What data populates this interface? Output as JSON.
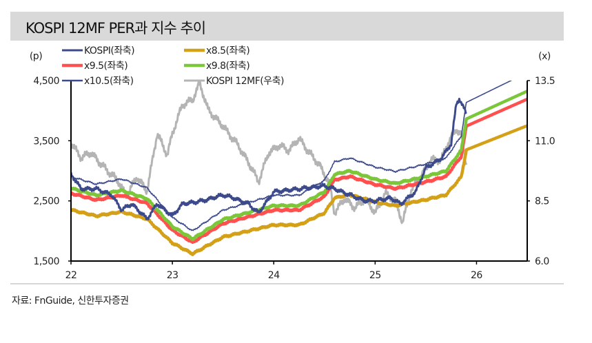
{
  "title": "KOSPI 12MF PER과 지수 추이",
  "source": "자료: FnGuide, 신한투자증권",
  "chart_data": {
    "type": "line",
    "title": "KOSPI 12MF PER과 지수 추이",
    "left_axis": {
      "label": "(p)",
      "ylim": [
        1500,
        4500
      ],
      "ticks": [
        "1,500",
        "2,500",
        "3,500",
        "4,500"
      ],
      "tick_values": [
        1500,
        2500,
        3500,
        4500
      ]
    },
    "right_axis": {
      "label": "(x)",
      "ylim": [
        6.0,
        13.5
      ],
      "ticks": [
        "6.0",
        "8.5",
        "11.0",
        "13.5"
      ],
      "tick_values": [
        6.0,
        8.5,
        11.0,
        13.5
      ]
    },
    "x_axis": {
      "xlim": [
        2022,
        2026.5
      ],
      "ticks": [
        "22",
        "23",
        "24",
        "25",
        "26"
      ],
      "tick_values": [
        2022,
        2023,
        2024,
        2025,
        2026
      ]
    },
    "grid": false,
    "legend_position": "top",
    "band_x": [
      2022.0,
      2022.25,
      2022.5,
      2022.75,
      2023.0,
      2023.2,
      2023.5,
      2023.75,
      2024.0,
      2024.25,
      2024.5,
      2024.6,
      2024.75,
      2025.0,
      2025.2,
      2025.5,
      2025.7,
      2025.85,
      2025.9,
      2026.5
    ],
    "series": [
      {
        "name": "KOSPI(좌축)",
        "axis": "left",
        "color": "#3c4a8c",
        "width": 3,
        "x": [
          2022.0,
          2022.1,
          2022.25,
          2022.4,
          2022.5,
          2022.6,
          2022.75,
          2022.85,
          2023.0,
          2023.1,
          2023.3,
          2023.5,
          2023.6,
          2023.75,
          2023.85,
          2024.0,
          2024.25,
          2024.5,
          2024.6,
          2024.75,
          2024.9,
          2025.0,
          2025.15,
          2025.25,
          2025.4,
          2025.5,
          2025.65,
          2025.75,
          2025.8,
          2025.83,
          2025.9
        ],
        "values": [
          2950,
          2700,
          2700,
          2600,
          2350,
          2450,
          2200,
          2450,
          2250,
          2450,
          2500,
          2600,
          2550,
          2450,
          2300,
          2650,
          2700,
          2750,
          2700,
          2600,
          2500,
          2500,
          2550,
          2450,
          2650,
          3050,
          3200,
          3450,
          4100,
          4200,
          3950
        ]
      },
      {
        "name": "x8.5(좌축)",
        "axis": "left",
        "color": "#d4a017",
        "width": 4.5,
        "band": true,
        "values": [
          2350,
          2250,
          2320,
          2200,
          1800,
          1620,
          1900,
          2000,
          2100,
          2100,
          2300,
          2550,
          2600,
          2480,
          2420,
          2520,
          2600,
          2900,
          3350,
          3750
        ]
      },
      {
        "name": "x9.5(좌축)",
        "axis": "left",
        "color": "#ff5050",
        "width": 4.5,
        "band": true,
        "values": [
          2626,
          2515,
          2593,
          2459,
          2012,
          1811,
          2124,
          2235,
          2347,
          2347,
          2571,
          2850,
          2906,
          2772,
          2705,
          2816,
          2906,
          3241,
          3744,
          4191
        ]
      },
      {
        "name": "x9.8(좌축)",
        "axis": "left",
        "color": "#7cc63a",
        "width": 4.5,
        "band": true,
        "values": [
          2710,
          2594,
          2675,
          2536,
          2075,
          1868,
          2191,
          2306,
          2421,
          2421,
          2652,
          2940,
          2998,
          2859,
          2790,
          2906,
          2998,
          3344,
          3863,
          4324
        ]
      },
      {
        "name": "x10.5(좌축)",
        "axis": "left",
        "color": "#3c4a8c",
        "width": 1.6,
        "band": true,
        "values": [
          2903,
          2779,
          2865,
          2717,
          2224,
          2001,
          2347,
          2471,
          2594,
          2594,
          2841,
          3150,
          3212,
          3063,
          2989,
          3113,
          3212,
          3582,
          4138,
          4632
        ]
      },
      {
        "name": "KOSPI 12MF(우축)",
        "axis": "right",
        "color": "#b4b4b4",
        "width": 3,
        "x": [
          2022.0,
          2022.1,
          2022.2,
          2022.3,
          2022.45,
          2022.55,
          2022.65,
          2022.75,
          2022.85,
          2022.95,
          2023.0,
          2023.1,
          2023.2,
          2023.27,
          2023.35,
          2023.5,
          2023.65,
          2023.75,
          2023.85,
          2023.95,
          2024.05,
          2024.15,
          2024.25,
          2024.35,
          2024.45,
          2024.55,
          2024.6,
          2024.7,
          2024.8,
          2024.9,
          2025.0,
          2025.1,
          2025.2,
          2025.27,
          2025.35,
          2025.45,
          2025.55,
          2025.65,
          2025.72,
          2025.8,
          2025.85,
          2025.9
        ],
        "values": [
          10.9,
          10.3,
          10.5,
          10.0,
          9.4,
          8.7,
          9.5,
          8.9,
          11.3,
          10.4,
          11.3,
          12.5,
          12.7,
          13.4,
          12.3,
          11.6,
          10.8,
          10.1,
          9.3,
          10.5,
          10.8,
          10.6,
          11.1,
          10.5,
          10.0,
          9.2,
          8.0,
          8.6,
          8.2,
          8.6,
          8.0,
          8.8,
          8.5,
          7.6,
          8.9,
          9.5,
          10.2,
          10.2,
          10.9,
          11.5,
          11.2,
          10.0
        ]
      }
    ],
    "legend_order": [
      0,
      1,
      2,
      3,
      4,
      5
    ]
  }
}
